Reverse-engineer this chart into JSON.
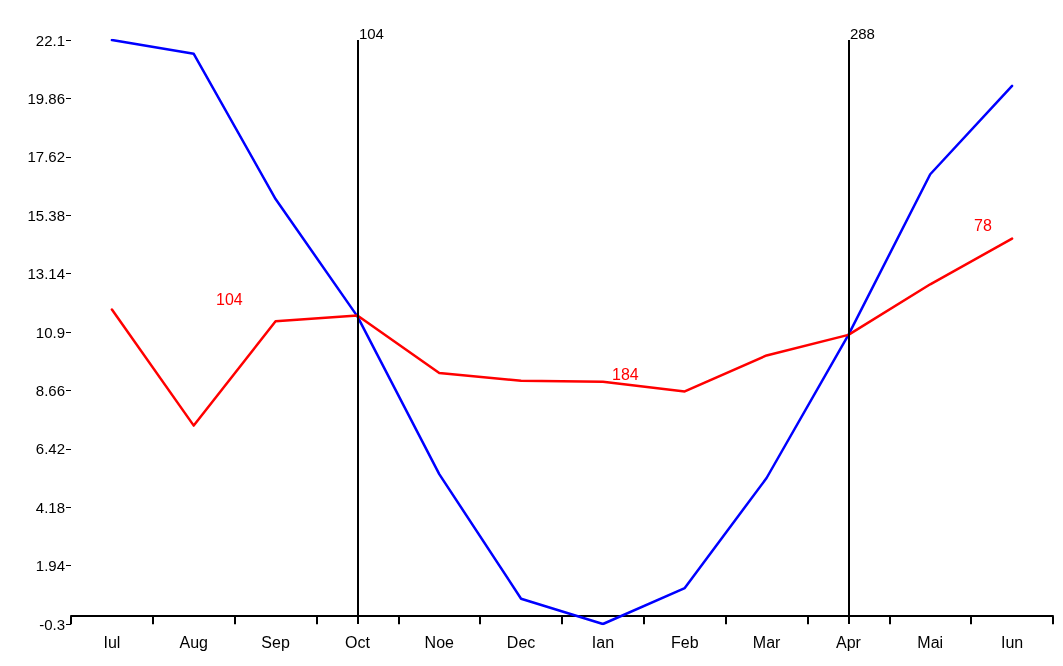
{
  "chart_data": {
    "type": "line",
    "categories": [
      "Iul",
      "Aug",
      "Sep",
      "Oct",
      "Noe",
      "Dec",
      "Ian",
      "Feb",
      "Mar",
      "Apr",
      "Mai",
      "Iun"
    ],
    "series": [
      {
        "color": "#0000ff",
        "values": [
          22.1,
          21.57,
          16.0,
          11.5,
          5.45,
          0.67,
          -0.3,
          1.08,
          5.3,
          10.79,
          16.95,
          20.34
        ]
      },
      {
        "color": "#ff0000",
        "values": [
          11.76,
          7.31,
          11.31,
          11.53,
          9.33,
          9.03,
          8.99,
          8.62,
          10.0,
          10.79,
          12.73,
          14.48
        ]
      }
    ],
    "ylim": [
      -0.3,
      22.1
    ],
    "yticks": [
      -0.3,
      1.94,
      4.18,
      6.42,
      8.66,
      10.9,
      13.14,
      15.38,
      17.62,
      19.86,
      22.1
    ],
    "ref_lines": [
      {
        "axis": "x",
        "value": "Oct",
        "label": "104",
        "color": "#000000"
      },
      {
        "axis": "x",
        "value": "Apr",
        "label": "288",
        "color": "#000000"
      }
    ],
    "annotations": [
      "104",
      "184",
      "78"
    ],
    "grid": false,
    "marker": "none",
    "line_style": "solid"
  }
}
